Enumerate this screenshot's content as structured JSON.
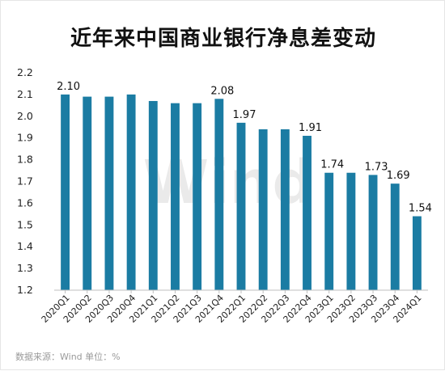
{
  "title": "近年来中国商业银行净息差变动",
  "source_text": "数据来源：Wind      单位：%",
  "watermark_text": "Wind",
  "colors": {
    "bar": "#1b7ca3",
    "axis": "#bfbfbf",
    "title": "#111111",
    "source": "#9a9a9a"
  },
  "chart_data": {
    "type": "bar",
    "title": "近年来中国商业银行净息差变动",
    "categories": [
      "2020Q1",
      "2020Q2",
      "2020Q3",
      "2020Q4",
      "2021Q1",
      "2021Q2",
      "2021Q3",
      "2021Q4",
      "2022Q1",
      "2022Q2",
      "2022Q3",
      "2022Q4",
      "2023Q1",
      "2023Q2",
      "2023Q3",
      "2023Q4",
      "2024Q1"
    ],
    "values": [
      2.1,
      2.09,
      2.09,
      2.1,
      2.07,
      2.06,
      2.06,
      2.08,
      1.97,
      1.94,
      1.94,
      1.91,
      1.74,
      1.74,
      1.73,
      1.69,
      1.54
    ],
    "data_labels": [
      {
        "index": 0,
        "text": "2.10"
      },
      {
        "index": 7,
        "text": "2.08"
      },
      {
        "index": 8,
        "text": "1.97"
      },
      {
        "index": 11,
        "text": "1.91"
      },
      {
        "index": 12,
        "text": "1.74"
      },
      {
        "index": 14,
        "text": "1.73"
      },
      {
        "index": 15,
        "text": "1.69"
      },
      {
        "index": 16,
        "text": "1.54"
      }
    ],
    "ylim": [
      1.2,
      2.2
    ],
    "yticks": [
      "1.2",
      "1.3",
      "1.4",
      "1.5",
      "1.6",
      "1.7",
      "1.8",
      "1.9",
      "2.0",
      "2.1",
      "2.2"
    ],
    "xlabel": "",
    "ylabel": "",
    "grid": false,
    "legend": "none"
  }
}
